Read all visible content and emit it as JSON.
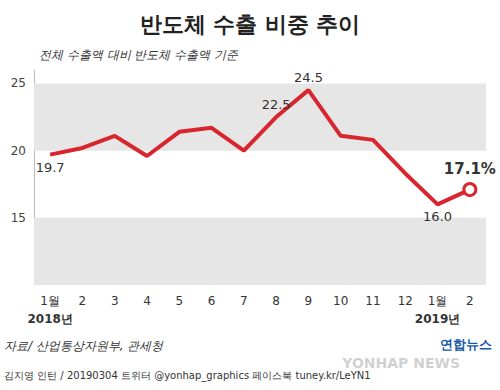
{
  "chart_data": {
    "type": "line",
    "title": "반도체 수출 비중 추이",
    "subtitle": "전체 수출액 대비 반도체 수출액 기준",
    "categories": [
      "1월",
      "2",
      "3",
      "4",
      "5",
      "6",
      "7",
      "8",
      "9",
      "10",
      "11",
      "12",
      "1월",
      "2"
    ],
    "year_labels": [
      {
        "text": "2018년",
        "at": 0
      },
      {
        "text": "2019년",
        "at": 12
      }
    ],
    "values": [
      19.7,
      20.2,
      21.1,
      19.6,
      21.4,
      21.7,
      20.0,
      22.5,
      24.5,
      21.1,
      20.8,
      18.3,
      16.0,
      17.1
    ],
    "value_labels": [
      "19.7",
      null,
      null,
      null,
      null,
      null,
      null,
      "22.5",
      "24.5",
      null,
      null,
      null,
      "16.0",
      "17.1%"
    ],
    "data_labels": true,
    "color": "#d9262e",
    "ylim": [
      10,
      26
    ],
    "yticks": [
      15,
      20,
      25
    ],
    "grid": true,
    "source": "자료/ 산업통상자원부, 관세청",
    "credit": "김지영 인턴 / 20190304 트위터 @yonhap_graphics 페이스북 tuney.kr/LeYN1",
    "logo": "연합뉴스",
    "watermark": "YONHAP NEWS"
  }
}
